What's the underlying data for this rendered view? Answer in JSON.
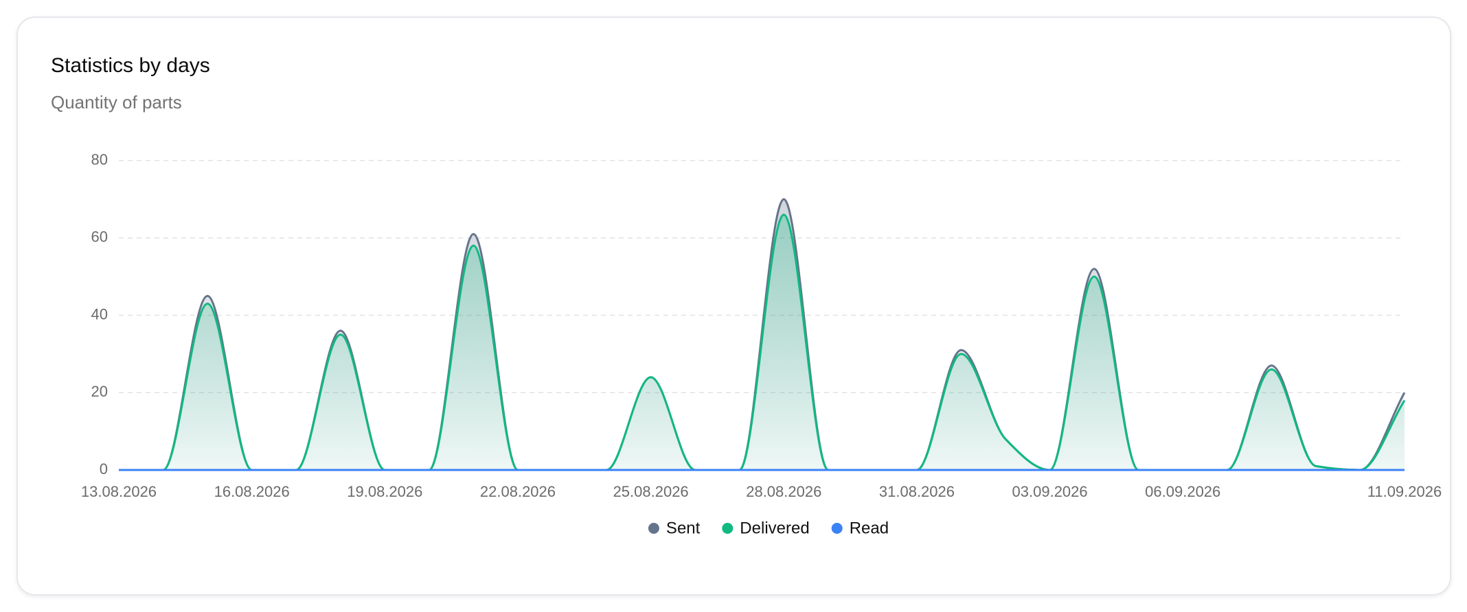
{
  "chart_data": {
    "type": "line",
    "title": "Statistics by days",
    "subtitle": "Quantity of parts",
    "categories": [
      "13.08.2026",
      null,
      null,
      "16.08.2026",
      null,
      null,
      "19.08.2026",
      null,
      null,
      "22.08.2026",
      null,
      null,
      "25.08.2026",
      null,
      null,
      "28.08.2026",
      null,
      null,
      "31.08.2026",
      null,
      null,
      "03.09.2026",
      null,
      null,
      "06.09.2026",
      null,
      null,
      null,
      null,
      "11.09.2026"
    ],
    "series": [
      {
        "name": "Sent",
        "color": "#64748b",
        "values": [
          0,
          0,
          45,
          0,
          0,
          36,
          0,
          0,
          61,
          0,
          0,
          0,
          24,
          0,
          0,
          70,
          0,
          0,
          0,
          31,
          8,
          0,
          52,
          0,
          0,
          0,
          27,
          1,
          0,
          20
        ]
      },
      {
        "name": "Delivered",
        "color": "#10b981",
        "values": [
          0,
          0,
          43,
          0,
          0,
          35,
          0,
          0,
          58,
          0,
          0,
          0,
          24,
          0,
          0,
          66,
          0,
          0,
          0,
          30,
          8,
          0,
          50,
          0,
          0,
          0,
          26,
          1,
          0,
          18
        ]
      },
      {
        "name": "Read",
        "color": "#3b82f6",
        "values": [
          0,
          0,
          0,
          0,
          0,
          0,
          0,
          0,
          0,
          0,
          0,
          0,
          0,
          0,
          0,
          0,
          0,
          0,
          0,
          0,
          0,
          0,
          0,
          0,
          0,
          0,
          0,
          0,
          0,
          0
        ]
      }
    ],
    "ylim": [
      0,
      80
    ],
    "yticks": [
      0,
      20,
      40,
      60,
      80
    ],
    "grid": true,
    "legend": "bottom"
  }
}
